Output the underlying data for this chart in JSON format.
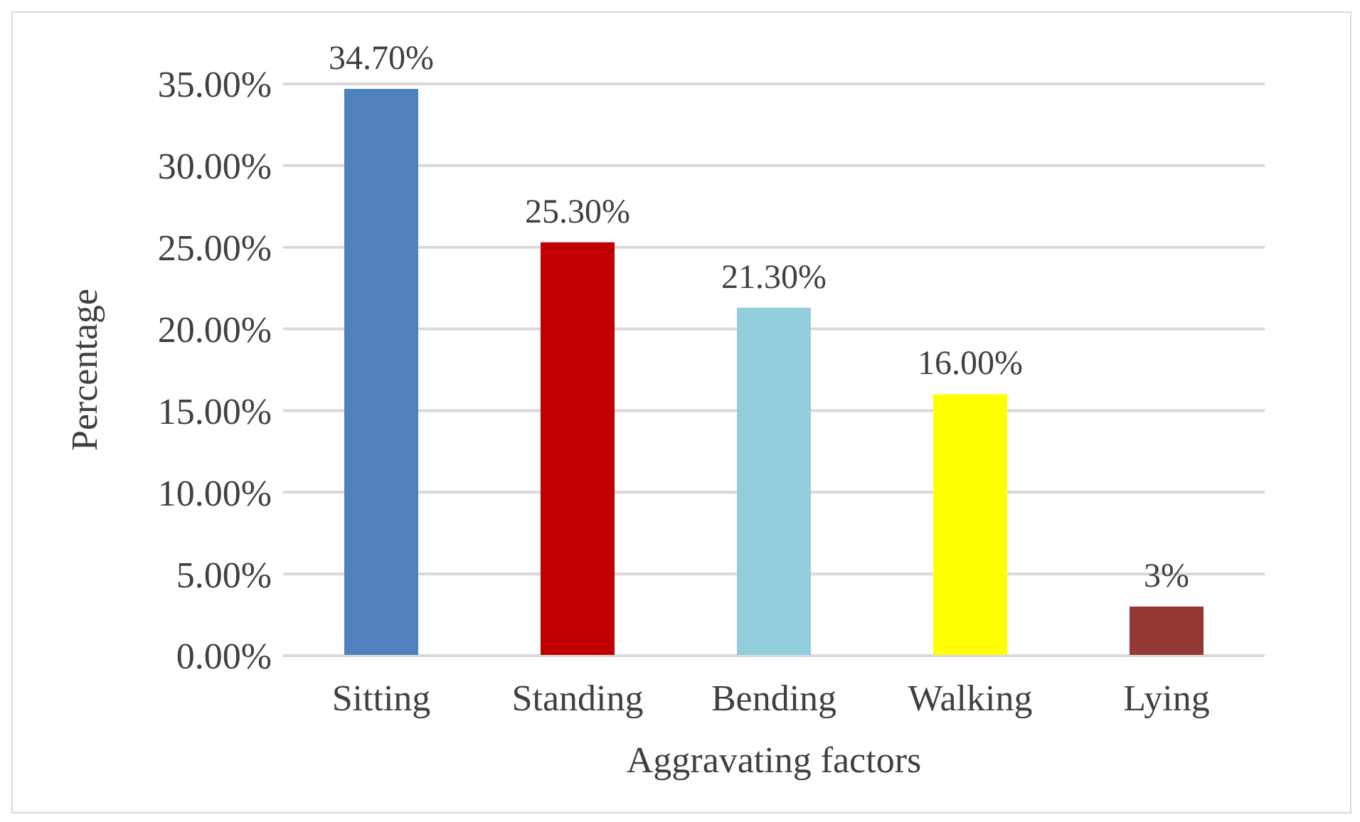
{
  "chart_data": {
    "type": "bar",
    "xlabel": "Aggravating factors",
    "ylabel": "Percentage",
    "categories": [
      "Sitting",
      "Standing",
      "Bending",
      "Walking",
      "Lying"
    ],
    "values": [
      34.7,
      25.3,
      21.3,
      16.0,
      3
    ],
    "value_labels": [
      "34.70%",
      "25.30%",
      "21.30%",
      "16.00%",
      "3%"
    ],
    "colors": [
      "#4f81bd",
      "#c00000",
      "#92cddc",
      "#ffff00",
      "#953735"
    ],
    "ylim": [
      0,
      35
    ],
    "yticks": [
      {
        "value": 0,
        "label": "0.00%"
      },
      {
        "value": 5,
        "label": "5.00%"
      },
      {
        "value": 10,
        "label": "10.00%"
      },
      {
        "value": 15,
        "label": "15.00%"
      },
      {
        "value": 20,
        "label": "20.00%"
      },
      {
        "value": 25,
        "label": "25.00%"
      },
      {
        "value": 30,
        "label": "30.00%"
      },
      {
        "value": 35,
        "label": "35.00%"
      }
    ],
    "grid": "y"
  }
}
